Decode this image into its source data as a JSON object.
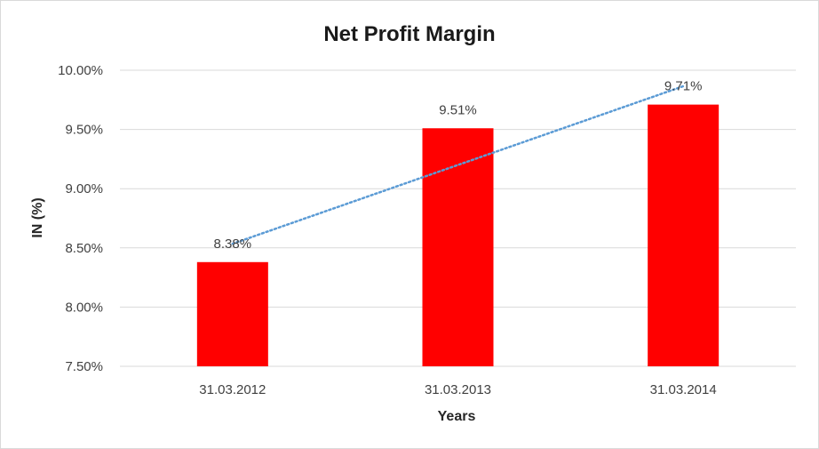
{
  "chart_data": {
    "type": "bar",
    "title": "Net Profit Margin",
    "xlabel": "Years",
    "ylabel": "IN (%)",
    "categories": [
      "31.03.2012",
      "31.03.2013",
      "31.03.2014"
    ],
    "values": [
      8.38,
      9.51,
      9.71
    ],
    "data_labels": [
      "8.38%",
      "9.51%",
      "9.71%"
    ],
    "ylim": [
      7.5,
      10.0
    ],
    "y_ticks": [
      7.5,
      8.0,
      8.5,
      9.0,
      9.5,
      10.0
    ],
    "y_tick_labels": [
      "7.50%",
      "8.00%",
      "8.50%",
      "9.00%",
      "9.50%",
      "10.00%"
    ],
    "grid": true,
    "legend": "none",
    "trendline": {
      "type": "linear",
      "style": "dotted"
    },
    "colors": {
      "bar": "#ff0000",
      "trendline": "#5b9bd5",
      "grid": "#d9d9d9"
    }
  }
}
